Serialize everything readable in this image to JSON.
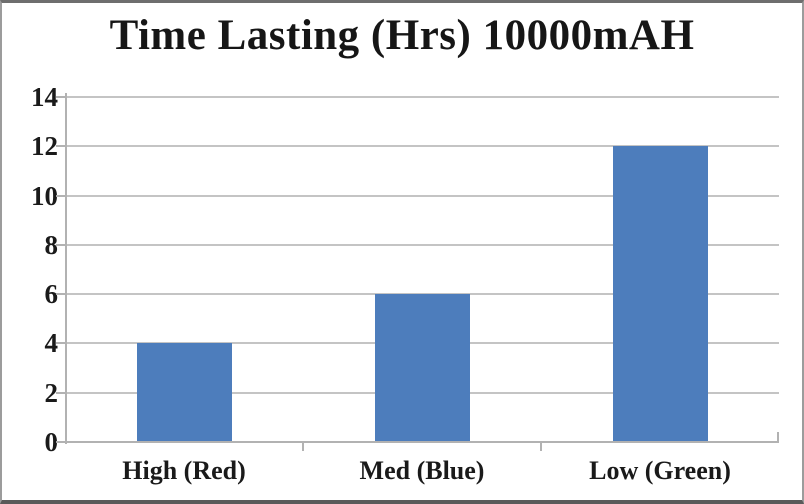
{
  "chart_data": {
    "type": "bar",
    "title": "Time Lasting (Hrs) 10000mAH",
    "categories": [
      "High (Red)",
      "Med (Blue)",
      "Low (Green)"
    ],
    "values": [
      4,
      6,
      12
    ],
    "ylim": [
      0,
      14
    ],
    "ytick_step": 2,
    "y_tick_labels": [
      "0",
      "2",
      "4",
      "6",
      "8",
      "10",
      "12",
      "14"
    ],
    "xlabel": "",
    "ylabel": "",
    "legend": "none",
    "grid": "horizontal",
    "bar_color": "#4d7dbc",
    "gridline_color": "#c4c4c4",
    "axis_color": "#b2b2b2",
    "text_color": "#1a1a1a",
    "background_color": "#ffffff"
  }
}
